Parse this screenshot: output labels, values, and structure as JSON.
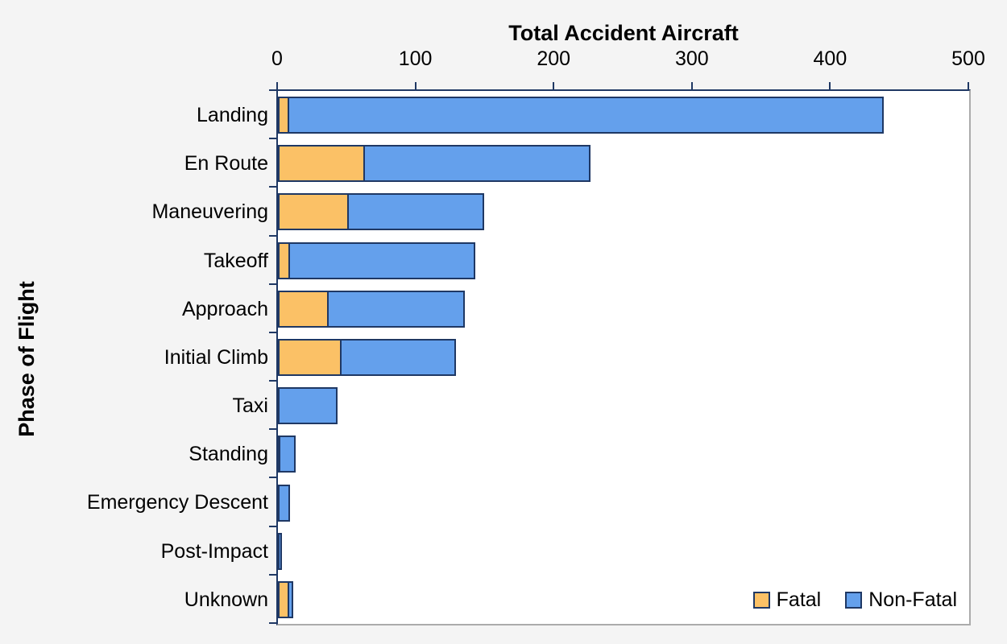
{
  "chart_data": {
    "type": "bar",
    "orientation": "horizontal",
    "stacked": true,
    "xlabel": "Total Accident Aircraft",
    "ylabel": "Phase of Flight",
    "xlim": [
      0,
      500
    ],
    "x_ticks": [
      0,
      100,
      200,
      300,
      400,
      500
    ],
    "grid": false,
    "legend_position": "inside-bottom-right",
    "categories": [
      "Landing",
      "En Route",
      "Maneuvering",
      "Takeoff",
      "Approach",
      "Initial Climb",
      "Taxi",
      "Standing",
      "Emergency Descent",
      "Post-Impact",
      "Unknown"
    ],
    "series": [
      {
        "name": "Fatal",
        "color": "#FBC166",
        "values": [
          8,
          63,
          51,
          9,
          37,
          46,
          0,
          2,
          1,
          0,
          8
        ]
      },
      {
        "name": "Non-Fatal",
        "color": "#64A0EC",
        "values": [
          430,
          163,
          98,
          134,
          98,
          83,
          43,
          11,
          8,
          2,
          3
        ]
      }
    ]
  },
  "legend": {
    "items": [
      {
        "label": "Fatal",
        "color": "#FBC166"
      },
      {
        "label": "Non-Fatal",
        "color": "#64A0EC"
      }
    ]
  },
  "colors": {
    "fatal": "#FBC166",
    "non_fatal": "#64A0EC",
    "bar_border": "#1F3864",
    "axis_line": "#1F3864",
    "frame_gray": "#ABABAB",
    "figure_background": "#F4F4F4",
    "plot_background": "#FFFFFF",
    "text": "#000000"
  }
}
